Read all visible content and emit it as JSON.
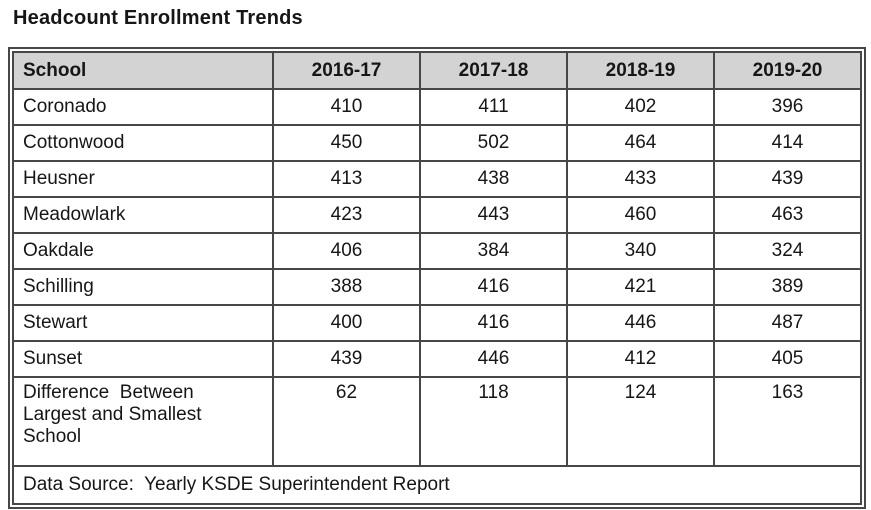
{
  "title": "Headcount Enrollment Trends",
  "table": {
    "columns": [
      "School",
      "2016-17",
      "2017-18",
      "2018-19",
      "2019-20"
    ],
    "rows": [
      {
        "school": "Coronado",
        "values": [
          410,
          411,
          402,
          396
        ]
      },
      {
        "school": "Cottonwood",
        "values": [
          450,
          502,
          464,
          414
        ]
      },
      {
        "school": "Heusner",
        "values": [
          413,
          438,
          433,
          439
        ]
      },
      {
        "school": "Meadowlark",
        "values": [
          423,
          443,
          460,
          463
        ]
      },
      {
        "school": "Oakdale",
        "values": [
          406,
          384,
          340,
          324
        ]
      },
      {
        "school": "Schilling",
        "values": [
          388,
          416,
          421,
          389
        ]
      },
      {
        "school": "Stewart",
        "values": [
          400,
          416,
          446,
          487
        ]
      },
      {
        "school": "Sunset",
        "values": [
          439,
          446,
          412,
          405
        ]
      }
    ],
    "summary_row": {
      "label": "Difference  Between\nLargest and Smallest\nSchool",
      "values": [
        62,
        118,
        124,
        163
      ]
    },
    "footer": "Data Source:  Yearly KSDE Superintendent Report"
  },
  "colors": {
    "header_background": "#d3d3d3",
    "border": "#474747",
    "text": "#161616",
    "page_background": "#ffffff"
  },
  "chart_data": {
    "type": "table",
    "title": "Headcount Enrollment Trends",
    "categories": [
      "2016-17",
      "2017-18",
      "2018-19",
      "2019-20"
    ],
    "series": [
      {
        "name": "Coronado",
        "values": [
          410,
          411,
          402,
          396
        ]
      },
      {
        "name": "Cottonwood",
        "values": [
          450,
          502,
          464,
          414
        ]
      },
      {
        "name": "Heusner",
        "values": [
          413,
          438,
          433,
          439
        ]
      },
      {
        "name": "Meadowlark",
        "values": [
          423,
          443,
          460,
          463
        ]
      },
      {
        "name": "Oakdale",
        "values": [
          406,
          384,
          340,
          324
        ]
      },
      {
        "name": "Schilling",
        "values": [
          388,
          416,
          421,
          389
        ]
      },
      {
        "name": "Stewart",
        "values": [
          400,
          416,
          446,
          487
        ]
      },
      {
        "name": "Sunset",
        "values": [
          439,
          446,
          412,
          405
        ]
      },
      {
        "name": "Difference Between Largest and Smallest School",
        "values": [
          62,
          118,
          124,
          163
        ]
      }
    ],
    "source_note": "Data Source:  Yearly KSDE Superintendent Report"
  }
}
